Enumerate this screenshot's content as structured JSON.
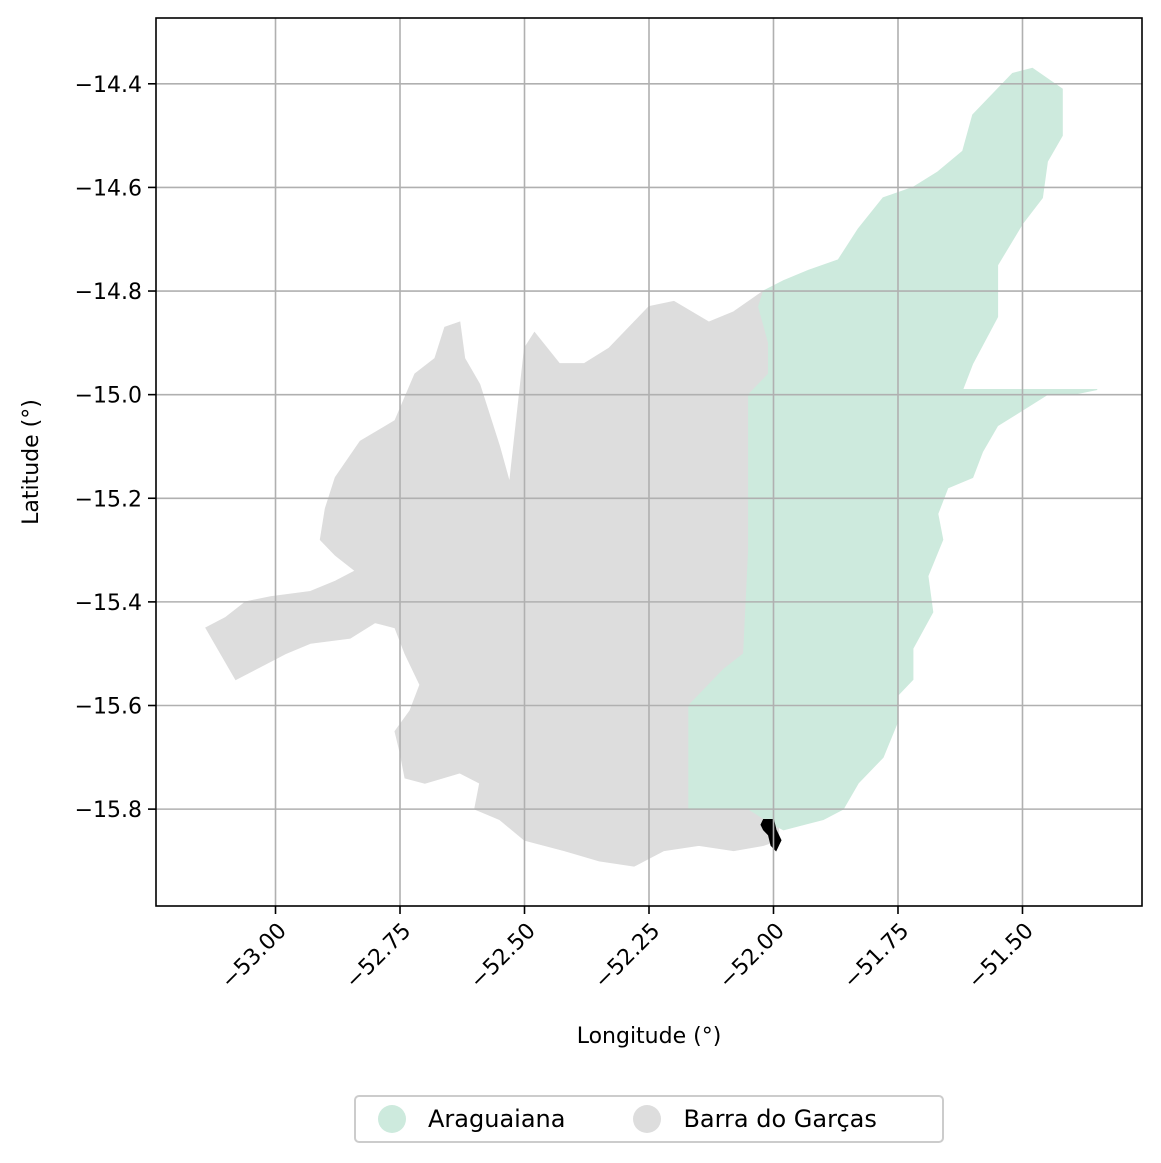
{
  "chart_data": {
    "type": "map",
    "xlabel": "Longitude (°)",
    "ylabel": "Latitude (°)",
    "xlim": [
      -53.24,
      -51.26
    ],
    "ylim": [
      -15.987,
      -14.273
    ],
    "xticks": [
      -53.0,
      -52.75,
      -52.5,
      -52.25,
      -52.0,
      -51.75,
      -51.5
    ],
    "xtick_labels": [
      "−53.00",
      "−52.75",
      "−52.50",
      "−52.25",
      "−52.00",
      "−51.75",
      "−51.50"
    ],
    "yticks": [
      -14.4,
      -14.6,
      -14.8,
      -15.0,
      -15.2,
      -15.4,
      -15.6,
      -15.8
    ],
    "ytick_labels": [
      "−14.4",
      "−14.6",
      "−14.8",
      "−15.0",
      "−15.2",
      "−15.4",
      "−15.6",
      "−15.8"
    ],
    "grid": true,
    "legend_position": "bottom-center",
    "regions": [
      {
        "name": "Barra do Garças",
        "color": "#dddddd",
        "outline": [
          [
            -53.14,
            -15.45
          ],
          [
            -53.08,
            -15.55
          ],
          [
            -53.02,
            -15.52
          ],
          [
            -52.98,
            -15.5
          ],
          [
            -52.93,
            -15.48
          ],
          [
            -52.85,
            -15.47
          ],
          [
            -52.8,
            -15.44
          ],
          [
            -52.76,
            -15.45
          ],
          [
            -52.74,
            -15.5
          ],
          [
            -52.71,
            -15.56
          ],
          [
            -52.73,
            -15.61
          ],
          [
            -52.76,
            -15.65
          ],
          [
            -52.75,
            -15.69
          ],
          [
            -52.74,
            -15.74
          ],
          [
            -52.7,
            -15.75
          ],
          [
            -52.63,
            -15.73
          ],
          [
            -52.59,
            -15.75
          ],
          [
            -52.6,
            -15.8
          ],
          [
            -52.55,
            -15.82
          ],
          [
            -52.5,
            -15.86
          ],
          [
            -52.42,
            -15.88
          ],
          [
            -52.35,
            -15.9
          ],
          [
            -52.28,
            -15.91
          ],
          [
            -52.22,
            -15.88
          ],
          [
            -52.15,
            -15.87
          ],
          [
            -52.08,
            -15.88
          ],
          [
            -52.02,
            -15.87
          ],
          [
            -51.99,
            -15.86
          ],
          [
            -51.99,
            -15.83
          ],
          [
            -52.02,
            -15.82
          ],
          [
            -52.05,
            -15.8
          ],
          [
            -52.17,
            -15.8
          ],
          [
            -52.17,
            -15.6
          ],
          [
            -52.1,
            -15.53
          ],
          [
            -52.06,
            -15.5
          ],
          [
            -52.05,
            -15.3
          ],
          [
            -52.05,
            -15.0
          ],
          [
            -52.01,
            -14.96
          ],
          [
            -52.01,
            -14.9
          ],
          [
            -52.03,
            -14.83
          ],
          [
            -52.02,
            -14.8
          ],
          [
            -52.08,
            -14.84
          ],
          [
            -52.13,
            -14.86
          ],
          [
            -52.2,
            -14.82
          ],
          [
            -52.25,
            -14.83
          ],
          [
            -52.28,
            -14.86
          ],
          [
            -52.33,
            -14.91
          ],
          [
            -52.38,
            -14.94
          ],
          [
            -52.43,
            -14.94
          ],
          [
            -52.48,
            -14.88
          ],
          [
            -52.5,
            -14.91
          ],
          [
            -52.53,
            -15.17
          ],
          [
            -52.55,
            -15.1
          ],
          [
            -52.59,
            -14.98
          ],
          [
            -52.62,
            -14.93
          ],
          [
            -52.63,
            -14.86
          ],
          [
            -52.66,
            -14.87
          ],
          [
            -52.68,
            -14.93
          ],
          [
            -52.72,
            -14.96
          ],
          [
            -52.76,
            -15.05
          ],
          [
            -52.83,
            -15.09
          ],
          [
            -52.88,
            -15.16
          ],
          [
            -52.9,
            -15.22
          ],
          [
            -52.91,
            -15.28
          ],
          [
            -52.88,
            -15.31
          ],
          [
            -52.84,
            -15.34
          ],
          [
            -52.88,
            -15.36
          ],
          [
            -52.93,
            -15.38
          ],
          [
            -53.01,
            -15.39
          ],
          [
            -53.06,
            -15.4
          ],
          [
            -53.1,
            -15.43
          ]
        ]
      },
      {
        "name": "Araguaiana",
        "color": "#cdeadd",
        "outline": [
          [
            -52.02,
            -14.8
          ],
          [
            -51.98,
            -14.78
          ],
          [
            -51.93,
            -14.76
          ],
          [
            -51.87,
            -14.74
          ],
          [
            -51.83,
            -14.68
          ],
          [
            -51.78,
            -14.62
          ],
          [
            -51.72,
            -14.6
          ],
          [
            -51.67,
            -14.57
          ],
          [
            -51.62,
            -14.53
          ],
          [
            -51.6,
            -14.46
          ],
          [
            -51.57,
            -14.43
          ],
          [
            -51.52,
            -14.38
          ],
          [
            -51.48,
            -14.37
          ],
          [
            -51.42,
            -14.41
          ],
          [
            -51.42,
            -14.5
          ],
          [
            -51.45,
            -14.55
          ],
          [
            -51.46,
            -14.62
          ],
          [
            -51.5,
            -14.67
          ],
          [
            -51.55,
            -14.75
          ],
          [
            -51.55,
            -14.85
          ],
          [
            -51.6,
            -14.94
          ],
          [
            -51.62,
            -14.99
          ],
          [
            -51.35,
            -14.99
          ],
          [
            -51.4,
            -15.0
          ],
          [
            -51.45,
            -15.0
          ],
          [
            -51.5,
            -15.03
          ],
          [
            -51.55,
            -15.06
          ],
          [
            -51.58,
            -15.11
          ],
          [
            -51.6,
            -15.16
          ],
          [
            -51.65,
            -15.18
          ],
          [
            -51.67,
            -15.23
          ],
          [
            -51.66,
            -15.28
          ],
          [
            -51.69,
            -15.35
          ],
          [
            -51.68,
            -15.42
          ],
          [
            -51.72,
            -15.49
          ],
          [
            -51.72,
            -15.55
          ],
          [
            -51.75,
            -15.58
          ],
          [
            -51.75,
            -15.63
          ],
          [
            -51.78,
            -15.7
          ],
          [
            -51.83,
            -15.75
          ],
          [
            -51.86,
            -15.8
          ],
          [
            -51.9,
            -15.82
          ],
          [
            -51.94,
            -15.83
          ],
          [
            -51.98,
            -15.84
          ],
          [
            -52.0,
            -15.83
          ],
          [
            -52.05,
            -15.8
          ],
          [
            -52.17,
            -15.8
          ],
          [
            -52.17,
            -15.6
          ],
          [
            -52.1,
            -15.53
          ],
          [
            -52.06,
            -15.5
          ],
          [
            -52.05,
            -15.3
          ],
          [
            -52.05,
            -15.0
          ],
          [
            -52.01,
            -14.96
          ],
          [
            -52.01,
            -14.9
          ],
          [
            -52.03,
            -14.83
          ]
        ]
      },
      {
        "name": "",
        "color": "#000000",
        "outline": [
          [
            -52.02,
            -15.82
          ],
          [
            -52.0,
            -15.82
          ],
          [
            -51.995,
            -15.84
          ],
          [
            -51.985,
            -15.86
          ],
          [
            -51.99,
            -15.87
          ],
          [
            -51.995,
            -15.88
          ],
          [
            -52.005,
            -15.87
          ],
          [
            -52.01,
            -15.85
          ],
          [
            -52.02,
            -15.84
          ],
          [
            -52.025,
            -15.83
          ]
        ]
      }
    ]
  },
  "legend": {
    "items": [
      {
        "label": "Araguaiana",
        "color": "#cdeadd"
      },
      {
        "label": "Barra do Garças",
        "color": "#dddddd"
      }
    ]
  }
}
